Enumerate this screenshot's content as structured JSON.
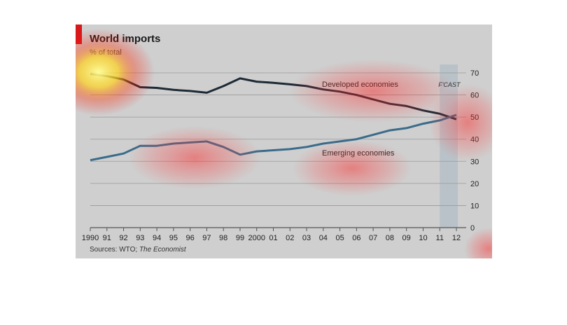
{
  "chart_data": {
    "type": "line",
    "title": "World imports",
    "subtitle": "% of total",
    "x": [
      "1990",
      "91",
      "92",
      "93",
      "94",
      "95",
      "96",
      "97",
      "98",
      "99",
      "2000",
      "01",
      "02",
      "03",
      "04",
      "05",
      "06",
      "07",
      "08",
      "09",
      "10",
      "11",
      "12"
    ],
    "series": [
      {
        "name": "Developed economies",
        "color": "#1e2a35",
        "values": [
          69.5,
          68.5,
          67,
          63.5,
          63.2,
          62.3,
          61.8,
          61,
          64,
          67.5,
          66,
          65.5,
          64.8,
          64,
          62.5,
          61.5,
          60,
          58,
          56,
          55,
          53,
          51.5,
          49
        ]
      },
      {
        "name": "Emerging economies",
        "color": "#3a6b8a",
        "values": [
          30.5,
          32,
          33.5,
          37,
          37,
          38,
          38.5,
          39,
          36.5,
          33,
          34.5,
          35,
          35.5,
          36.5,
          38,
          39,
          40,
          42,
          44,
          45,
          47,
          48.5,
          51
        ]
      }
    ],
    "ylim": [
      0,
      70
    ],
    "yticks": [
      "0",
      "10",
      "20",
      "30",
      "40",
      "50",
      "60",
      "70"
    ],
    "forecast_label": "F'CAST",
    "forecast_from": "11",
    "grid": true,
    "background": "#cfcfcf",
    "accent": "#d7191c"
  },
  "sources_prefix": "Sources: WTO; ",
  "sources_italic": "The Economist"
}
